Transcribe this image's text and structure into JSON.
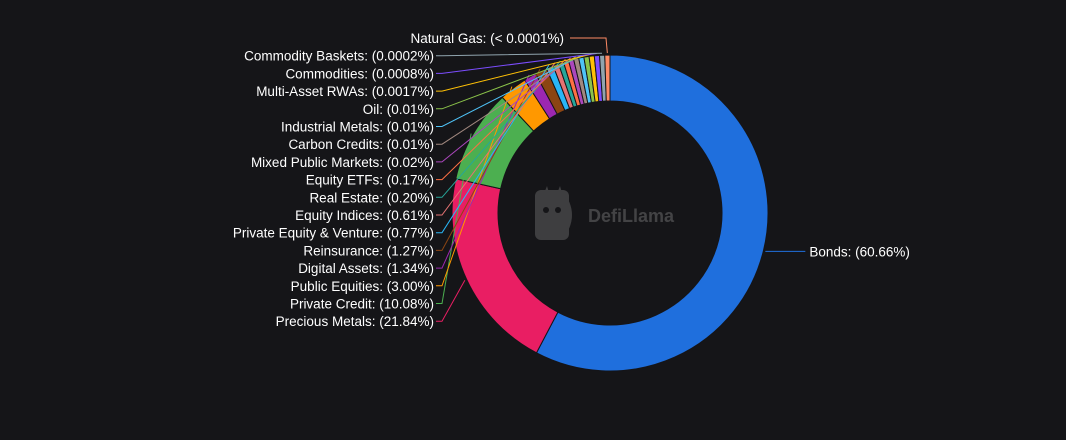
{
  "watermark": {
    "text": "DefiLlama"
  },
  "chart_data": {
    "type": "pie",
    "donut": true,
    "slices": [
      {
        "name": "Bonds",
        "label": "Bonds: (60.66%)",
        "value": 60.66,
        "color": "#1f6fdd"
      },
      {
        "name": "Precious Metals",
        "label": "Precious Metals: (21.84%)",
        "value": 21.84,
        "color": "#e91e63"
      },
      {
        "name": "Private Credit",
        "label": "Private Credit: (10.08%)",
        "value": 10.08,
        "color": "#4caf50"
      },
      {
        "name": "Public Equities",
        "label": "Public Equities: (3.00%)",
        "value": 3.0,
        "color": "#ff9800"
      },
      {
        "name": "Digital Assets",
        "label": "Digital Assets: (1.34%)",
        "value": 1.34,
        "color": "#9c27b0"
      },
      {
        "name": "Reinsurance",
        "label": "Reinsurance: (1.27%)",
        "value": 1.27,
        "color": "#8b4513"
      },
      {
        "name": "Private Equity & Venture",
        "label": "Private Equity & Venture: (0.77%)",
        "value": 0.77,
        "color": "#29b6f6"
      },
      {
        "name": "Equity Indices",
        "label": "Equity Indices: (0.61%)",
        "value": 0.61,
        "color": "#e57373"
      },
      {
        "name": "Real Estate",
        "label": "Real Estate: (0.20%)",
        "value": 0.2,
        "color": "#26a69a"
      },
      {
        "name": "Equity ETFs",
        "label": "Equity ETFs: (0.17%)",
        "value": 0.17,
        "color": "#ff7043"
      },
      {
        "name": "Mixed Public Markets",
        "label": "Mixed Public Markets: (0.02%)",
        "value": 0.02,
        "color": "#ab47bc"
      },
      {
        "name": "Carbon Credits",
        "label": "Carbon Credits: (0.01%)",
        "value": 0.01,
        "color": "#a1887f"
      },
      {
        "name": "Industrial Metals",
        "label": "Industrial Metals: (0.01%)",
        "value": 0.01,
        "color": "#4fc3f7"
      },
      {
        "name": "Oil",
        "label": "Oil: (0.01%)",
        "value": 0.01,
        "color": "#8bc34a"
      },
      {
        "name": "Multi-Asset RWAs",
        "label": "Multi-Asset RWAs: (0.0017%)",
        "value": 0.0017,
        "color": "#ffc107"
      },
      {
        "name": "Commodities",
        "label": "Commodities: (0.0008%)",
        "value": 0.0008,
        "color": "#7c4dff"
      },
      {
        "name": "Commodity Baskets",
        "label": "Commodity Baskets: (0.0002%)",
        "value": 0.0002,
        "color": "#90a4ae"
      },
      {
        "name": "Natural Gas",
        "label": "Natural Gas: (< 0.0001%)",
        "value": 5e-05,
        "color": "#ff8a65"
      }
    ]
  }
}
